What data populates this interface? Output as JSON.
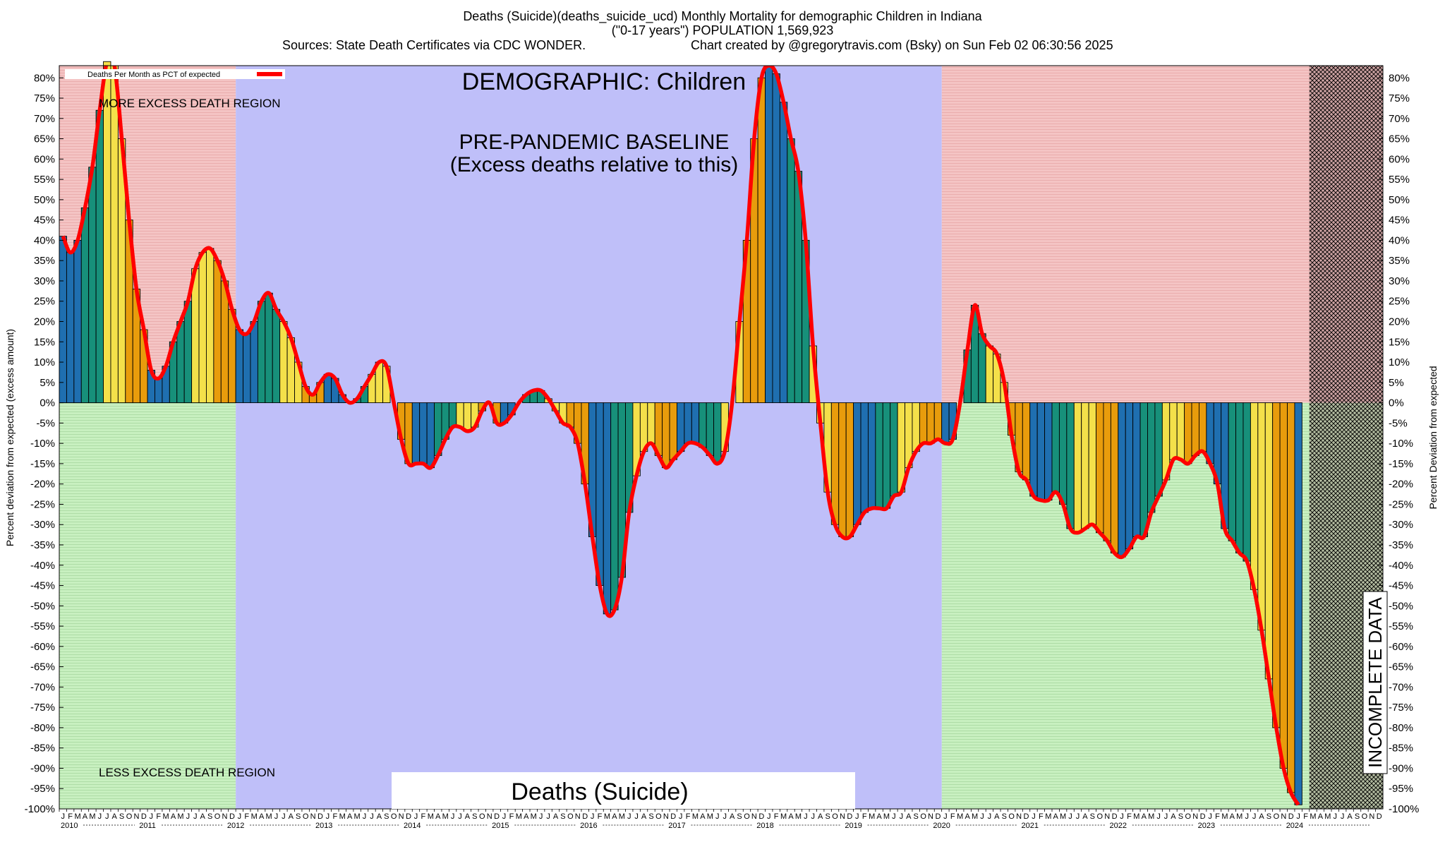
{
  "header": {
    "title_line1": "Deaths (Suicide)(deaths_suicide_ucd) Monthly Mortality for demographic Children in Indiana",
    "title_line2": "(\"0-17 years\") POPULATION 1,569,923",
    "sources": "Sources: State Death Certificates via CDC WONDER.",
    "credit": "Chart created by @gregorytravis.com (Bsky) on Sun Feb 02 06:30:56 2025"
  },
  "annotations": {
    "demographic": "DEMOGRAPHIC: Children",
    "baseline_line1": "PRE-PANDEMIC BASELINE",
    "baseline_line2": "(Excess deaths relative to this)",
    "more_excess": "MORE EXCESS DEATH REGION",
    "less_excess": "LESS EXCESS DEATH REGION",
    "cause_box": "Deaths (Suicide)",
    "incomplete": "INCOMPLETE DATA",
    "legend_label": "Deaths Per Month as PCT of expected"
  },
  "colors": {
    "line": "#ff0000",
    "bar_colors": [
      "#1f6fb0",
      "#17907a",
      "#f4e04a",
      "#e89c0c"
    ],
    "more_region": "#f4c4c4",
    "less_region": "#c8f0c0",
    "baseline_region": "#bfbff9",
    "incomplete_region": "#a08080"
  },
  "chart_data": {
    "type": "bar",
    "ylabel_left": "Percent deviation from expected (excess amount)",
    "ylabel_right": "Percent Deviation from expected",
    "ylim": [
      -100,
      83
    ],
    "yticks": [
      80,
      75,
      70,
      65,
      60,
      55,
      50,
      45,
      40,
      35,
      30,
      25,
      20,
      15,
      10,
      5,
      0,
      -5,
      -10,
      -15,
      -20,
      -25,
      -30,
      -35,
      -40,
      -45,
      -50,
      -55,
      -60,
      -65,
      -70,
      -75,
      -80,
      -85,
      -90,
      -95,
      -100
    ],
    "ytick_labels": [
      "80%",
      "75%",
      "70%",
      "65%",
      "60%",
      "55%",
      "50%",
      "45%",
      "40%",
      "35%",
      "30%",
      "25%",
      "20%",
      "15%",
      "10%",
      "5%",
      "0%",
      "-5%",
      "-10%",
      "-15%",
      "-20%",
      "-25%",
      "-30%",
      "-35%",
      "-40%",
      "-45%",
      "-50%",
      "-55%",
      "-60%",
      "-65%",
      "-70%",
      "-75%",
      "-80%",
      "-85%",
      "-90%",
      "-95%",
      "-100%"
    ],
    "month_letters": [
      "J",
      "F",
      "M",
      "A",
      "M",
      "J",
      "J",
      "A",
      "S",
      "O",
      "N",
      "D"
    ],
    "years": [
      "2010",
      "2011",
      "2012",
      "2013",
      "2014",
      "2015",
      "2016",
      "2017",
      "2018",
      "2019",
      "2020",
      "2021",
      "2022",
      "2023",
      "2024"
    ],
    "baseline_period": [
      "2012-01",
      "2019-12"
    ],
    "incomplete_from": "2024-03",
    "grid": false,
    "legend_position": "top-left",
    "series": [
      {
        "name": "Deaths Per Month as PCT of expected",
        "start": "2010-01",
        "values": [
          41,
          37,
          40,
          48,
          58,
          72,
          84,
          83,
          65,
          45,
          28,
          18,
          8,
          6,
          9,
          15,
          20,
          25,
          33,
          37,
          38,
          35,
          30,
          23,
          18,
          17,
          20,
          25,
          27,
          23,
          20,
          16,
          10,
          4,
          2,
          5,
          7,
          6,
          2,
          0,
          1,
          4,
          7,
          10,
          9,
          0,
          -9,
          -15,
          -15,
          -15,
          -16,
          -13,
          -9,
          -6,
          -6,
          -7,
          -6,
          -2,
          0,
          -5,
          -5,
          -3,
          0,
          2,
          3,
          3,
          1,
          -2,
          -5,
          -6,
          -10,
          -20,
          -33,
          -45,
          -52,
          -51,
          -43,
          -27,
          -18,
          -12,
          -10,
          -13,
          -16,
          -14,
          -12,
          -10,
          -10,
          -11,
          -13,
          -15,
          -12,
          0,
          20,
          40,
          65,
          80,
          83,
          81,
          74,
          65,
          57,
          40,
          14,
          -5,
          -22,
          -30,
          -33,
          -33,
          -30,
          -27,
          -26,
          -26,
          -26,
          -23,
          -22,
          -16,
          -12,
          -10,
          -10,
          -9,
          -10,
          -9,
          0,
          13,
          24,
          17,
          14,
          12,
          5,
          -8,
          -17,
          -19,
          -23,
          -24,
          -24,
          -22,
          -25,
          -31,
          -32,
          -31,
          -30,
          -32,
          -34,
          -37,
          -38,
          -36,
          -33,
          -33,
          -27,
          -23,
          -19,
          -14,
          -14,
          -15,
          -13,
          -12,
          -15,
          -20,
          -31,
          -34,
          -37,
          -39,
          -46,
          -56,
          -68,
          -80,
          -90,
          -96,
          -99
        ]
      }
    ]
  }
}
